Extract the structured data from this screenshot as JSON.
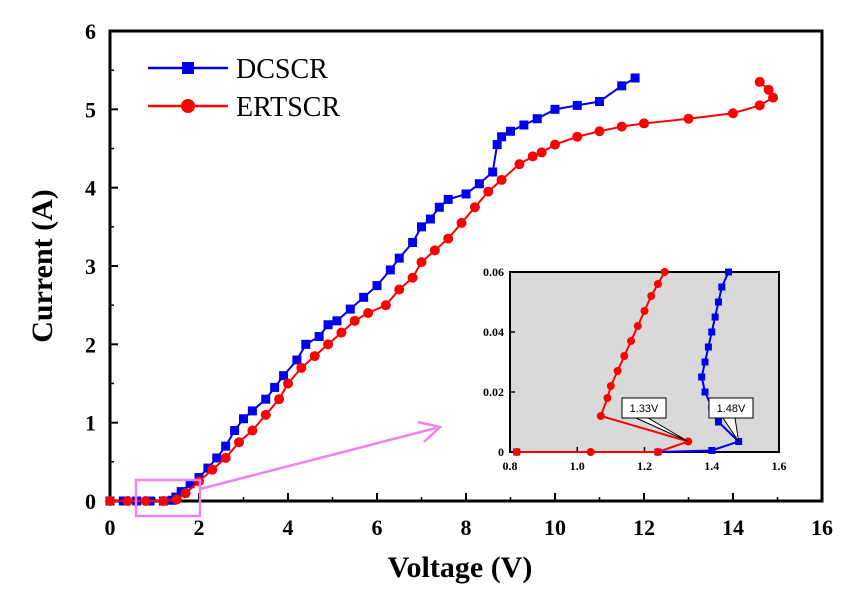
{
  "chart_data": {
    "type": "line",
    "xlabel": "Voltage (V)",
    "ylabel": "Current (A)",
    "xlim": [
      0,
      16
    ],
    "ylim": [
      0,
      6
    ],
    "xticks": [
      "0",
      "2",
      "4",
      "6",
      "8",
      "10",
      "12",
      "14",
      "16"
    ],
    "yticks": [
      "0",
      "1",
      "2",
      "3",
      "4",
      "5",
      "6"
    ],
    "legend_position": "top-left",
    "series": [
      {
        "name": "DCSCR",
        "color": "#0000ee",
        "marker": "square",
        "points": [
          [
            0,
            0
          ],
          [
            0.3,
            0
          ],
          [
            0.6,
            0
          ],
          [
            0.9,
            0
          ],
          [
            1.2,
            0
          ],
          [
            1.4,
            0.01
          ],
          [
            1.48,
            0.05
          ],
          [
            1.6,
            0.12
          ],
          [
            1.8,
            0.22
          ],
          [
            2.0,
            0.3
          ],
          [
            2.2,
            0.42
          ],
          [
            2.4,
            0.55
          ],
          [
            2.6,
            0.7
          ],
          [
            2.8,
            0.9
          ],
          [
            3.0,
            1.05
          ],
          [
            3.2,
            1.15
          ],
          [
            3.5,
            1.3
          ],
          [
            3.7,
            1.45
          ],
          [
            3.9,
            1.6
          ],
          [
            4.2,
            1.8
          ],
          [
            4.4,
            2.0
          ],
          [
            4.7,
            2.1
          ],
          [
            4.9,
            2.25
          ],
          [
            5.1,
            2.3
          ],
          [
            5.4,
            2.45
          ],
          [
            5.7,
            2.6
          ],
          [
            6.0,
            2.75
          ],
          [
            6.3,
            2.95
          ],
          [
            6.5,
            3.1
          ],
          [
            6.8,
            3.3
          ],
          [
            7.0,
            3.5
          ],
          [
            7.2,
            3.6
          ],
          [
            7.4,
            3.75
          ],
          [
            7.6,
            3.85
          ],
          [
            8.0,
            3.92
          ],
          [
            8.3,
            4.05
          ],
          [
            8.6,
            4.2
          ],
          [
            8.7,
            4.55
          ],
          [
            8.8,
            4.65
          ],
          [
            9.0,
            4.72
          ],
          [
            9.3,
            4.8
          ],
          [
            9.6,
            4.88
          ],
          [
            10.0,
            5.0
          ],
          [
            10.5,
            5.05
          ],
          [
            11.0,
            5.1
          ],
          [
            11.5,
            5.3
          ],
          [
            11.8,
            5.4
          ]
        ]
      },
      {
        "name": "ERTSCR",
        "color": "#ff0000",
        "marker": "circle",
        "points": [
          [
            0,
            0
          ],
          [
            0.4,
            0
          ],
          [
            0.8,
            0
          ],
          [
            1.2,
            0
          ],
          [
            1.5,
            0.02
          ],
          [
            1.7,
            0.1
          ],
          [
            2.0,
            0.25
          ],
          [
            2.3,
            0.4
          ],
          [
            2.6,
            0.55
          ],
          [
            2.9,
            0.75
          ],
          [
            3.2,
            0.9
          ],
          [
            3.5,
            1.1
          ],
          [
            3.8,
            1.3
          ],
          [
            4.0,
            1.5
          ],
          [
            4.3,
            1.7
          ],
          [
            4.6,
            1.85
          ],
          [
            4.9,
            2.0
          ],
          [
            5.2,
            2.15
          ],
          [
            5.5,
            2.3
          ],
          [
            5.8,
            2.4
          ],
          [
            6.2,
            2.5
          ],
          [
            6.5,
            2.7
          ],
          [
            6.8,
            2.85
          ],
          [
            7.0,
            3.05
          ],
          [
            7.3,
            3.2
          ],
          [
            7.6,
            3.35
          ],
          [
            7.9,
            3.55
          ],
          [
            8.2,
            3.75
          ],
          [
            8.5,
            3.95
          ],
          [
            8.8,
            4.1
          ],
          [
            9.2,
            4.3
          ],
          [
            9.5,
            4.4
          ],
          [
            9.7,
            4.45
          ],
          [
            10.0,
            4.55
          ],
          [
            10.5,
            4.65
          ],
          [
            11.0,
            4.72
          ],
          [
            11.5,
            4.78
          ],
          [
            12.0,
            4.82
          ],
          [
            13.0,
            4.88
          ],
          [
            14.0,
            4.95
          ],
          [
            14.6,
            5.05
          ],
          [
            14.9,
            5.15
          ],
          [
            14.8,
            5.25
          ],
          [
            14.6,
            5.35
          ]
        ]
      }
    ],
    "inset": {
      "xlim": [
        0.8,
        1.6
      ],
      "ylim": [
        0,
        0.06
      ],
      "xticks": [
        "0.8",
        "1.0",
        "1.2",
        "1.4",
        "1.6"
      ],
      "yticks": [
        "0",
        "0.02",
        "0.04",
        "0.06"
      ],
      "background": "#d9d9d9",
      "series": [
        {
          "name": "DCSCR",
          "points": [
            [
              0.82,
              0.0
            ],
            [
              1.24,
              0.0
            ],
            [
              1.4,
              0.0005
            ],
            [
              1.48,
              0.0035
            ],
            [
              1.42,
              0.01
            ],
            [
              1.4,
              0.015
            ],
            [
              1.38,
              0.02
            ],
            [
              1.37,
              0.025
            ],
            [
              1.38,
              0.03
            ],
            [
              1.39,
              0.035
            ],
            [
              1.4,
              0.04
            ],
            [
              1.41,
              0.045
            ],
            [
              1.42,
              0.05
            ],
            [
              1.43,
              0.055
            ],
            [
              1.45,
              0.06
            ]
          ]
        },
        {
          "name": "ERTSCR",
          "points": [
            [
              0.82,
              0.0
            ],
            [
              1.04,
              0.0
            ],
            [
              1.24,
              0.0
            ],
            [
              1.33,
              0.0035
            ],
            [
              1.07,
              0.012
            ],
            [
              1.09,
              0.018
            ],
            [
              1.1,
              0.022
            ],
            [
              1.12,
              0.027
            ],
            [
              1.14,
              0.032
            ],
            [
              1.16,
              0.037
            ],
            [
              1.18,
              0.042
            ],
            [
              1.2,
              0.047
            ],
            [
              1.22,
              0.052
            ],
            [
              1.24,
              0.056
            ],
            [
              1.26,
              0.06
            ]
          ]
        }
      ],
      "callouts": [
        {
          "text": "1.33V",
          "x": 1.33,
          "y": 0.0035
        },
        {
          "text": "1.48V",
          "x": 1.48,
          "y": 0.0035
        }
      ]
    }
  }
}
